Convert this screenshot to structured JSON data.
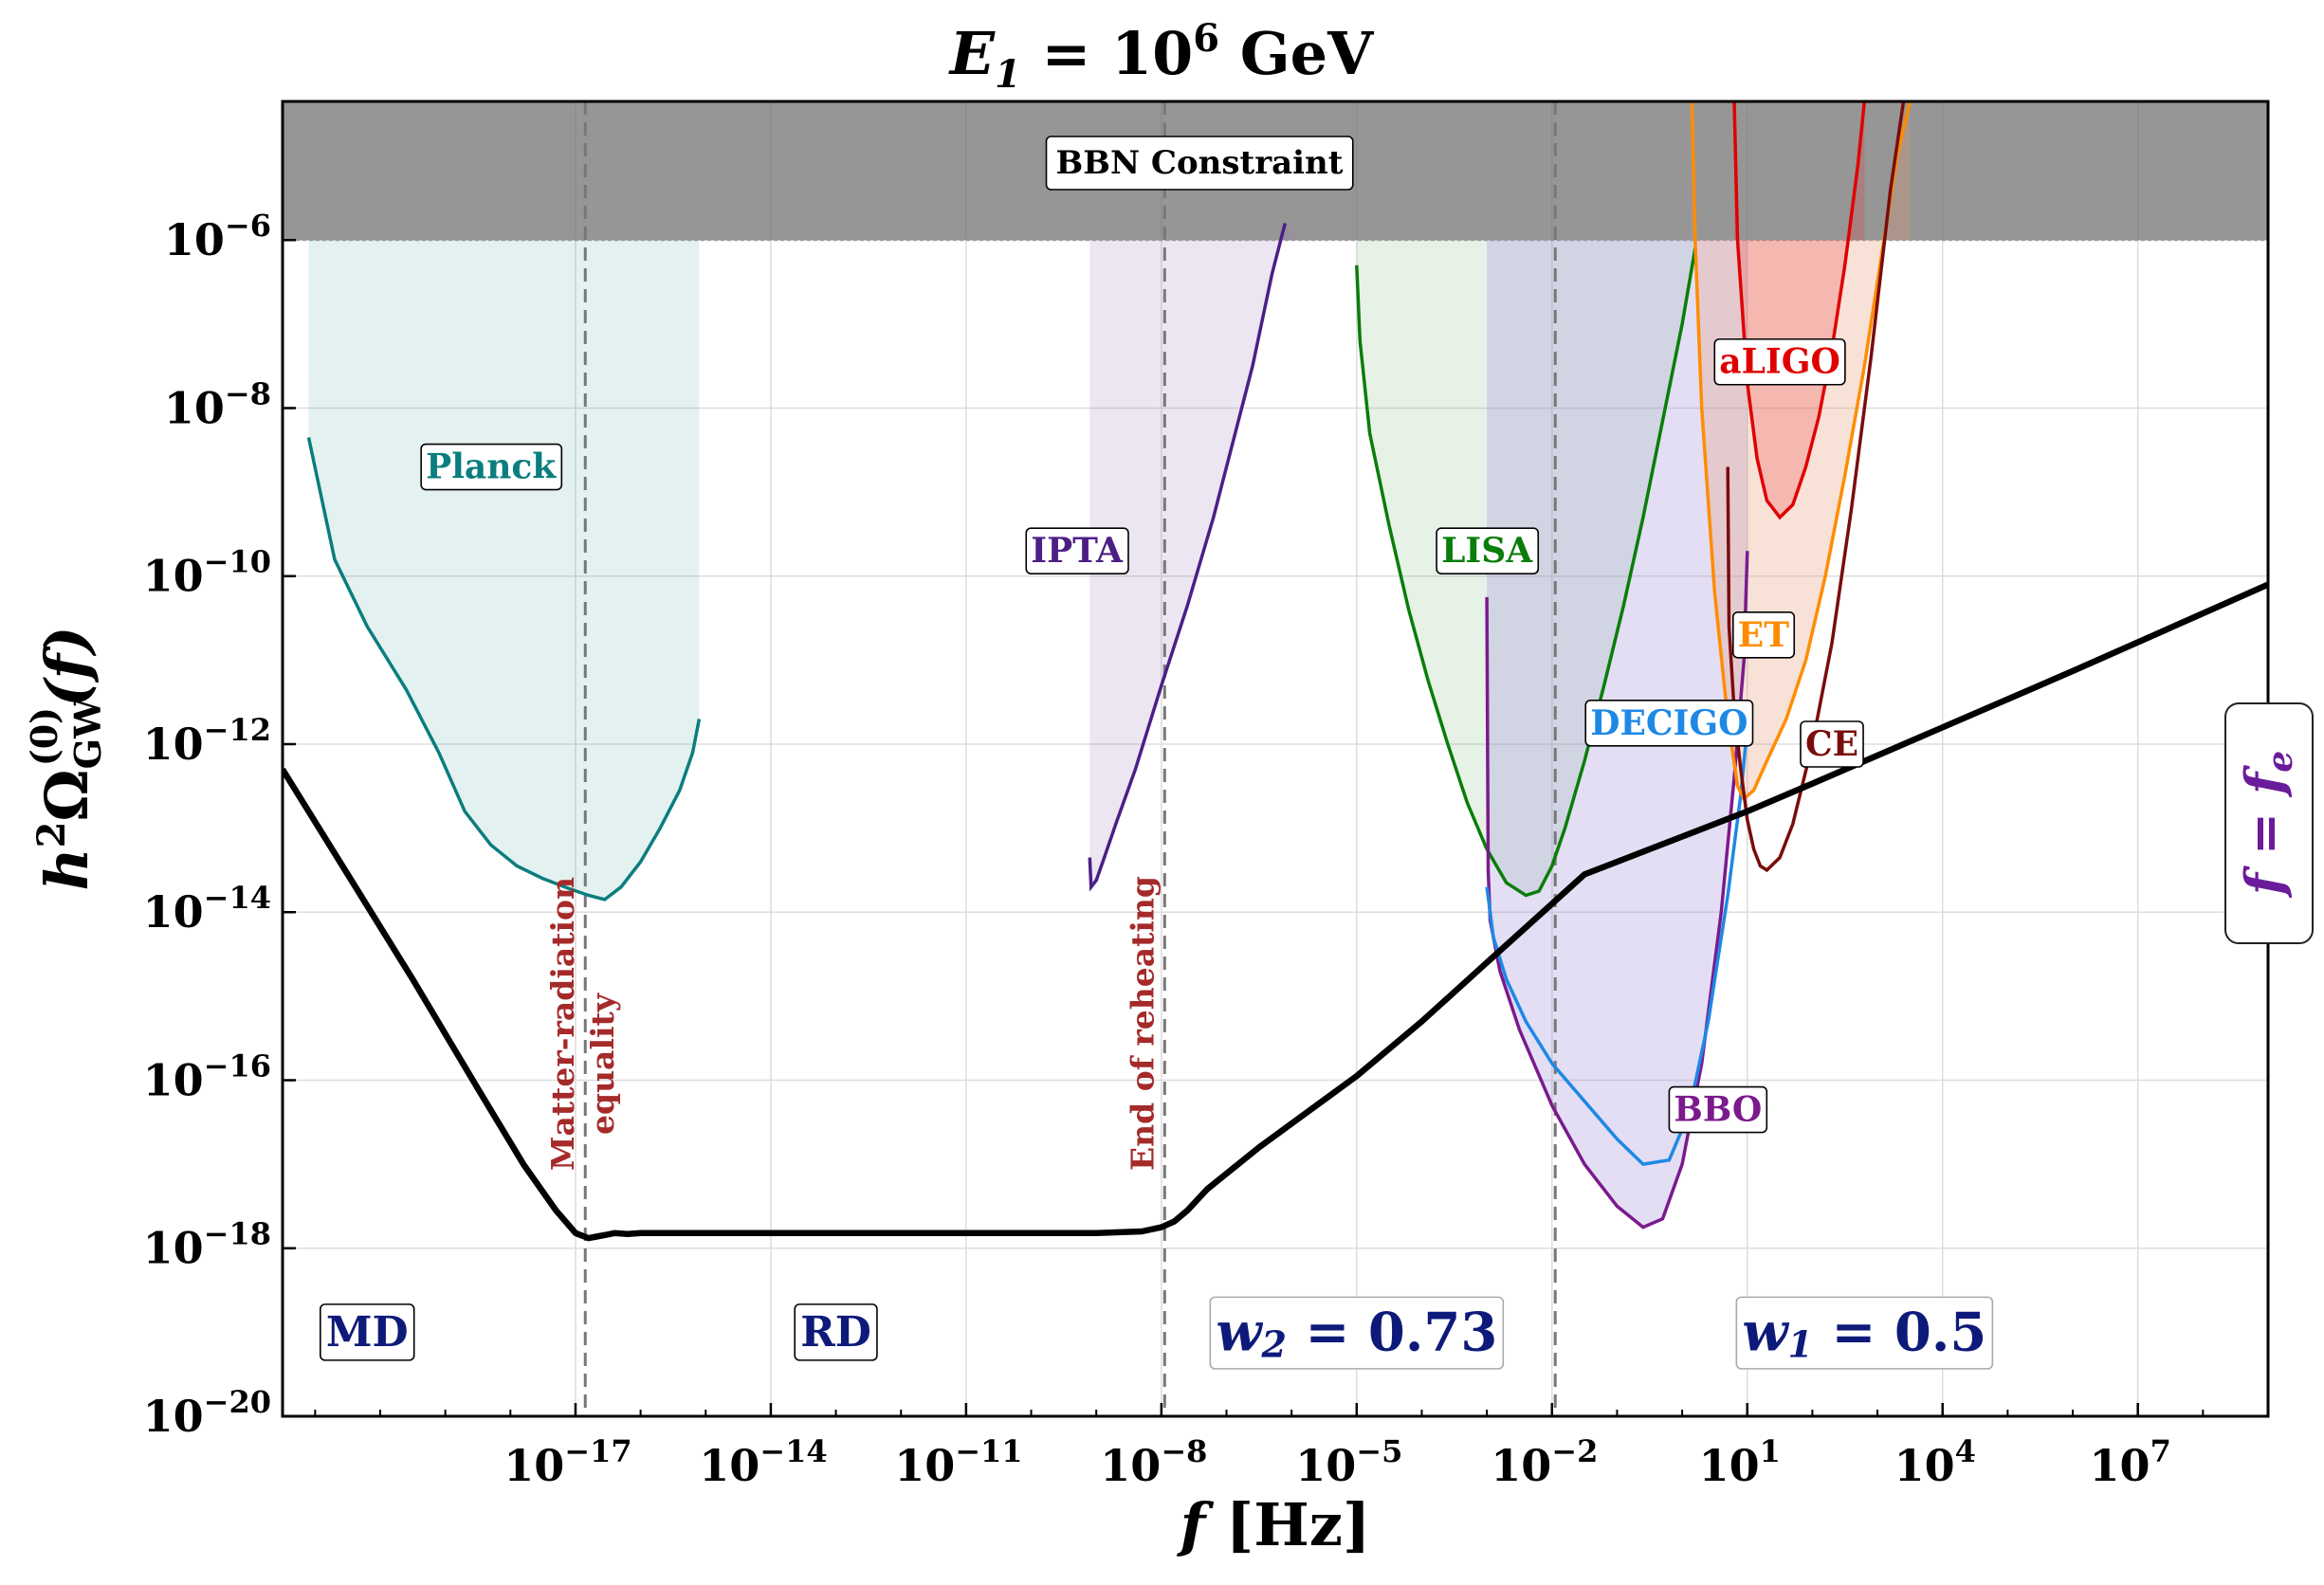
{
  "chart_data": {
    "type": "line",
    "title_main": "E",
    "title_sub": "1",
    "title_mid": " = 10",
    "title_sup": "6",
    "title_end": " GeV",
    "xlabel_main": "f",
    "xlabel_unit": " [Hz]",
    "ylabel_pre": "h",
    "ylabel_sup": "2",
    "ylabel_omega": "Ω",
    "ylabel_sub": "GW",
    "ylabel_supo": "(0)",
    "ylabel_post": "(f)",
    "x_log_range": [
      -21.5,
      9.0
    ],
    "y_log_range": [
      -20,
      -4.35
    ],
    "x_tick_exponents": [
      -17,
      -14,
      -11,
      -8,
      -5,
      -2,
      1,
      4,
      7
    ],
    "y_tick_exponents": [
      -6,
      -8,
      -10,
      -12,
      -14,
      -16,
      -18,
      -20
    ],
    "tick_base": "10",
    "x_tick_labels": [
      "−17",
      "−14",
      "−11",
      "−8",
      "−5",
      "−2",
      "1",
      "4",
      "7"
    ],
    "y_tick_labels": [
      "−6",
      "−8",
      "−10",
      "−12",
      "−14",
      "−16",
      "−18",
      "−20"
    ],
    "grid": true,
    "bbn": {
      "label": "BBN Constraint",
      "log_omega": -6
    },
    "vlines": [
      {
        "log_f": -16.85,
        "label_lines": [
          "Matter-radiation",
          "equality"
        ]
      },
      {
        "log_f": -7.95,
        "label_lines": [
          "End of reheating"
        ]
      },
      {
        "log_f": -1.95,
        "label_lines": []
      }
    ],
    "vline_label_color": "#a52a2a",
    "era_labels": [
      {
        "text": "MD",
        "log_f": -20.2,
        "log_omega": -19.0
      },
      {
        "text": "RD",
        "log_f": -13.0,
        "log_omega": -19.0
      },
      {
        "text_main": "w",
        "text_sub": "2",
        "text_val": " = 0.73",
        "log_f": -5.0,
        "log_omega": -19.0
      },
      {
        "text_main": "w",
        "text_sub": "1",
        "text_val": " = 0.5",
        "log_f": 2.8,
        "log_omega": -19.0
      }
    ],
    "side_label": {
      "main": "f = f",
      "sub": "e"
    },
    "side_label_color": "#6a1b9a",
    "signal": {
      "name": "GW spectrum",
      "color": "#000000",
      "x": [
        -21.5,
        -20.5,
        -19.5,
        -18.5,
        -17.8,
        -17.3,
        -17.0,
        -16.8,
        -16.6,
        -16.4,
        -16.2,
        -16.0,
        -15.0,
        -12.0,
        -9.0,
        -8.3,
        -8.0,
        -7.8,
        -7.6,
        -7.3,
        -6.5,
        -5.0,
        -4.0,
        -3.0,
        -2.0,
        -1.5,
        -1.0,
        0.0,
        1.0,
        2.0,
        4.0,
        6.0,
        9.0
      ],
      "y": [
        -12.3,
        -13.55,
        -14.8,
        -16.1,
        -17.0,
        -17.55,
        -17.82,
        -17.88,
        -17.85,
        -17.82,
        -17.83,
        -17.82,
        -17.82,
        -17.82,
        -17.82,
        -17.8,
        -17.75,
        -17.68,
        -17.55,
        -17.3,
        -16.8,
        -15.95,
        -15.3,
        -14.6,
        -13.9,
        -13.55,
        -13.4,
        -13.1,
        -12.8,
        -12.47,
        -11.8,
        -11.13,
        -10.1
      ]
    },
    "detectors": [
      {
        "name": "Planck",
        "color": "#0b7d7d",
        "fill": "rgba(55,165,155,0.14)",
        "x": [
          -21.1,
          -20.7,
          -20.2,
          -19.6,
          -19.1,
          -18.7,
          -18.3,
          -17.9,
          -17.5,
          -17.1,
          -16.8,
          -16.55,
          -16.3,
          -16.0,
          -15.7,
          -15.4,
          -15.2,
          -15.1
        ],
        "y": [
          -8.35,
          -9.8,
          -10.6,
          -11.35,
          -12.1,
          -12.8,
          -13.2,
          -13.45,
          -13.6,
          -13.72,
          -13.8,
          -13.85,
          -13.7,
          -13.4,
          -13.0,
          -12.55,
          -12.1,
          -11.7
        ],
        "fill_x": [
          -21.1,
          -15.1
        ],
        "label_log_f": -18.3,
        "label_log_omega": -8.7
      },
      {
        "name": "IPTA",
        "color": "#4b1f86",
        "fill": "rgba(150,115,190,0.18)",
        "x": [
          -9.1,
          -9.08,
          -9.0,
          -8.9,
          -8.7,
          -8.4,
          -8.0,
          -7.6,
          -7.2,
          -6.9,
          -6.6,
          -6.3,
          -6.1
        ],
        "y": [
          -13.35,
          -13.7,
          -13.62,
          -13.4,
          -12.95,
          -12.3,
          -11.3,
          -10.35,
          -9.3,
          -8.4,
          -7.5,
          -6.4,
          -5.8
        ],
        "fill_x": [
          -9.1,
          -5.9
        ],
        "label_log_f": -9.3,
        "label_log_omega": -9.7
      },
      {
        "name": "LISA",
        "color": "#0a7d0a",
        "fill": "rgba(110,180,110,0.17)",
        "x": [
          -5.0,
          -4.95,
          -4.8,
          -4.5,
          -4.2,
          -3.9,
          -3.6,
          -3.3,
          -3.0,
          -2.7,
          -2.4,
          -2.2,
          -2.0,
          -1.8,
          -1.5,
          -1.2,
          -0.9,
          -0.6,
          -0.3,
          0.0,
          0.2
        ],
        "y": [
          -6.3,
          -7.2,
          -8.3,
          -9.4,
          -10.4,
          -11.25,
          -12.0,
          -12.7,
          -13.25,
          -13.65,
          -13.8,
          -13.75,
          -13.45,
          -13.0,
          -12.2,
          -11.3,
          -10.35,
          -9.3,
          -8.15,
          -7.0,
          -6.1
        ],
        "fill_x": [
          -5.0,
          0.2
        ],
        "label_log_f": -3.0,
        "label_log_omega": -9.7
      },
      {
        "name": "BBO",
        "color": "#7b1a8c",
        "fill": "rgba(155,135,215,0.28)",
        "x": [
          -3.0,
          -2.98,
          -2.95,
          -2.8,
          -2.5,
          -2.0,
          -1.5,
          -1.0,
          -0.6,
          -0.3,
          0.0,
          0.3,
          0.6,
          0.8,
          0.95,
          1.0
        ],
        "y": [
          -10.25,
          -13.5,
          -14.1,
          -14.7,
          -15.4,
          -16.3,
          -17.0,
          -17.5,
          -17.75,
          -17.65,
          -17.0,
          -15.8,
          -14.0,
          -12.4,
          -11.0,
          -9.7
        ],
        "fill_x": [
          -3.0,
          1.0
        ],
        "label_log_f": 0.55,
        "label_log_omega": -16.35
      },
      {
        "name": "DECIGO",
        "color": "#1e88e5",
        "fill": "none",
        "x": [
          -3.0,
          -2.9,
          -2.7,
          -2.4,
          -2.0,
          -1.5,
          -1.0,
          -0.6,
          -0.2,
          0.1,
          0.4,
          0.7,
          0.9,
          1.0
        ],
        "y": [
          -13.7,
          -14.3,
          -14.8,
          -15.3,
          -15.8,
          -16.25,
          -16.7,
          -17.0,
          -16.95,
          -16.4,
          -15.3,
          -13.8,
          -12.6,
          -11.8
        ],
        "fill_x": null,
        "label_log_f": -0.2,
        "label_log_omega": -11.75
      },
      {
        "name": "ET",
        "color": "#ff8c00",
        "fill": "rgba(230,150,110,0.28)",
        "x": [
          0.15,
          0.2,
          0.3,
          0.5,
          0.7,
          0.85,
          0.95,
          1.1,
          1.3,
          1.6,
          1.9,
          2.2,
          2.5,
          2.8,
          3.1,
          3.3,
          3.5
        ],
        "y": [
          -4.35,
          -6.0,
          -8.0,
          -10.2,
          -11.7,
          -12.5,
          -12.65,
          -12.55,
          -12.2,
          -11.7,
          -11.0,
          -10.0,
          -8.8,
          -7.5,
          -6.0,
          -5.0,
          -4.35
        ],
        "fill_x": [
          0.15,
          3.5
        ],
        "label_log_f": 1.25,
        "label_log_omega": -10.7
      },
      {
        "name": "aLIGO",
        "color": "#e00000",
        "fill": "rgba(230,60,60,0.25)",
        "x": [
          0.8,
          0.85,
          1.0,
          1.15,
          1.3,
          1.5,
          1.7,
          1.9,
          2.1,
          2.3,
          2.5,
          2.7,
          2.8
        ],
        "y": [
          -4.35,
          -6.0,
          -7.7,
          -8.6,
          -9.1,
          -9.3,
          -9.15,
          -8.7,
          -8.1,
          -7.3,
          -6.3,
          -5.1,
          -4.35
        ],
        "fill_x": [
          0.8,
          2.8
        ],
        "label_log_f": 1.5,
        "label_log_omega": -7.45
      },
      {
        "name": "CE",
        "color": "#7a0c0c",
        "fill": "none",
        "x": [
          0.7,
          0.72,
          0.8,
          0.9,
          1.0,
          1.1,
          1.2,
          1.3,
          1.5,
          1.7,
          2.0,
          2.3,
          2.6,
          2.9,
          3.2,
          3.4
        ],
        "y": [
          -8.7,
          -10.6,
          -11.6,
          -12.3,
          -12.9,
          -13.25,
          -13.45,
          -13.5,
          -13.35,
          -12.95,
          -12.0,
          -10.8,
          -9.2,
          -7.4,
          -5.4,
          -4.35
        ],
        "fill_x": null,
        "label_log_f": 2.3,
        "label_log_omega": -12.0
      }
    ]
  }
}
